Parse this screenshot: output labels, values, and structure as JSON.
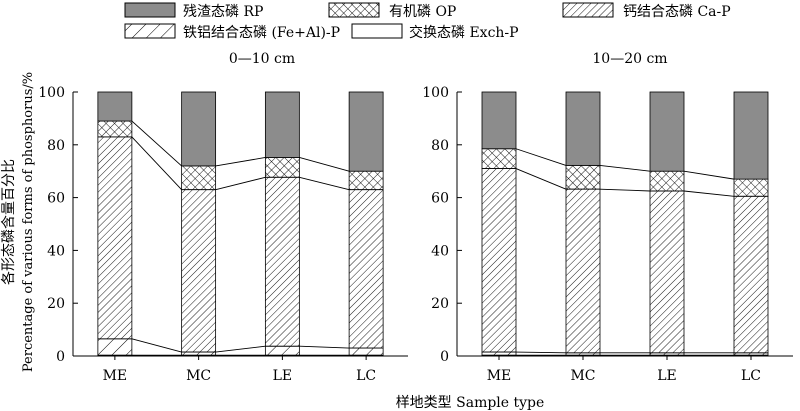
{
  "legend": {
    "items": [
      {
        "key": "RP",
        "label": "残渣态磷 RP",
        "pattern": "solid-gray"
      },
      {
        "key": "OP",
        "label": "有机磷 OP",
        "pattern": "crosshatch"
      },
      {
        "key": "CaP",
        "label": "钙结合态磷 Ca-P",
        "pattern": "dense-diagonal"
      },
      {
        "key": "FeAlP",
        "label": "铁铝结合态磷 (Fe+Al)-P",
        "pattern": "wide-diagonal"
      },
      {
        "key": "ExchP",
        "label": "交换态磷 Exch-P",
        "pattern": "white"
      }
    ]
  },
  "colors": {
    "rp_fill": "#8c8c8c",
    "ink": "#000000",
    "background": "#ffffff"
  },
  "chart_data": [
    {
      "type": "bar",
      "stacked": true,
      "title": "0—10 cm",
      "categories": [
        "ME",
        "MC",
        "LE",
        "LC"
      ],
      "ylim": [
        0,
        100
      ],
      "yticks": [
        0,
        20,
        40,
        60,
        80,
        100
      ],
      "series": [
        {
          "name": "交换态磷 Exch-P",
          "values": [
            0.3,
            0.3,
            0.3,
            0.3
          ]
        },
        {
          "name": "铁铝结合态磷 (Fe+Al)-P",
          "values": [
            6.2,
            1.2,
            3.4,
            2.7
          ]
        },
        {
          "name": "钙结合态磷 Ca-P",
          "values": [
            76.5,
            61.5,
            64.0,
            60.0
          ]
        },
        {
          "name": "有机磷 OP",
          "values": [
            6.0,
            9.0,
            7.5,
            7.0
          ]
        },
        {
          "name": "残渣态磷 RP",
          "values": [
            11.0,
            28.0,
            24.8,
            30.0
          ]
        }
      ]
    },
    {
      "type": "bar",
      "stacked": true,
      "title": "10—20 cm",
      "categories": [
        "ME",
        "MC",
        "LE",
        "LC"
      ],
      "ylim": [
        0,
        100
      ],
      "yticks": [
        0,
        20,
        40,
        60,
        80,
        100
      ],
      "series": [
        {
          "name": "交换态磷 Exch-P",
          "values": [
            0.3,
            0.3,
            0.3,
            0.3
          ]
        },
        {
          "name": "铁铝结合态磷 (Fe+Al)-P",
          "values": [
            1.2,
            0.9,
            0.9,
            0.9
          ]
        },
        {
          "name": "钙结合态磷 Ca-P",
          "values": [
            69.5,
            62.0,
            61.3,
            59.3
          ]
        },
        {
          "name": "有机磷 OP",
          "values": [
            7.5,
            9.0,
            7.5,
            6.5
          ]
        },
        {
          "name": "残渣态磷 RP",
          "values": [
            21.5,
            27.8,
            30.0,
            33.0
          ]
        }
      ]
    }
  ],
  "axes": {
    "ylabel_zh": "各形态磷含量百分比",
    "ylabel_en": "Percentage of various forms of phosphorus/%",
    "xlabel": "样地类型 Sample type"
  }
}
